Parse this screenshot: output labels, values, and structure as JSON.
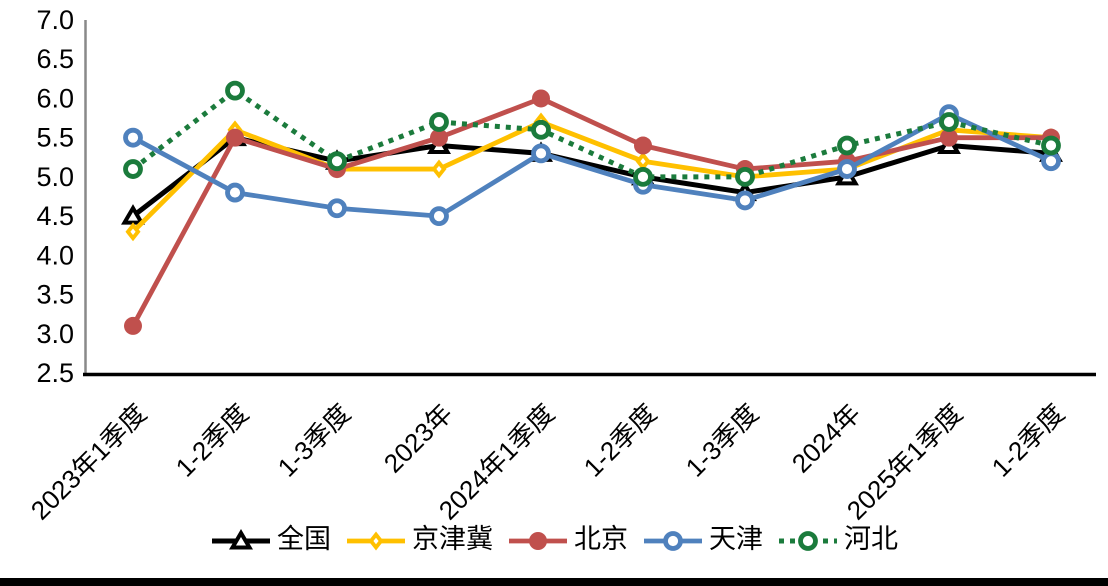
{
  "chart_data": {
    "type": "line",
    "title": "",
    "categories": [
      "2023年1季度",
      "1-2季度",
      "1-3季度",
      "2023年",
      "2024年1季度",
      "1-2季度",
      "1-3季度",
      "2024年",
      "2025年1季度",
      "1-2季度"
    ],
    "series": [
      {
        "name": "全国",
        "color": "#000000",
        "marker": "triangle-open",
        "line": "solid",
        "values": [
          4.5,
          5.5,
          5.2,
          5.4,
          5.3,
          5.0,
          4.8,
          5.0,
          5.4,
          5.3
        ]
      },
      {
        "name": "京津冀",
        "color": "#FFC000",
        "marker": "diamond",
        "line": "solid",
        "values": [
          4.3,
          5.6,
          5.1,
          5.1,
          5.7,
          5.2,
          5.0,
          5.1,
          5.6,
          5.5
        ]
      },
      {
        "name": "北京",
        "color": "#C0504D",
        "marker": "circle-filled",
        "line": "solid",
        "values": [
          3.1,
          5.5,
          5.1,
          5.5,
          6.0,
          5.4,
          5.1,
          5.2,
          5.5,
          5.5
        ]
      },
      {
        "name": "天津",
        "color": "#4F81BD",
        "marker": "circle-open",
        "line": "solid",
        "values": [
          5.5,
          4.8,
          4.6,
          4.5,
          5.3,
          4.9,
          4.7,
          5.1,
          5.8,
          5.2
        ]
      },
      {
        "name": "河北",
        "color": "#1B7B3C",
        "marker": "circle-open",
        "line": "dotted",
        "values": [
          5.1,
          6.1,
          5.2,
          5.7,
          5.6,
          5.0,
          5.0,
          5.4,
          5.7,
          5.4
        ]
      }
    ],
    "ylim": [
      2.5,
      7.0
    ],
    "ytick_step": 0.5,
    "ytick_labels": [
      "2.5",
      "3.0",
      "3.5",
      "4.0",
      "4.5",
      "5.0",
      "5.5",
      "6.0",
      "6.5",
      "7.0"
    ],
    "grid": false,
    "legend_position": "bottom",
    "axis_colors": {
      "y_axis_line": "#898989",
      "x_axis_line": "#000000",
      "tick_text": "#000000"
    }
  }
}
